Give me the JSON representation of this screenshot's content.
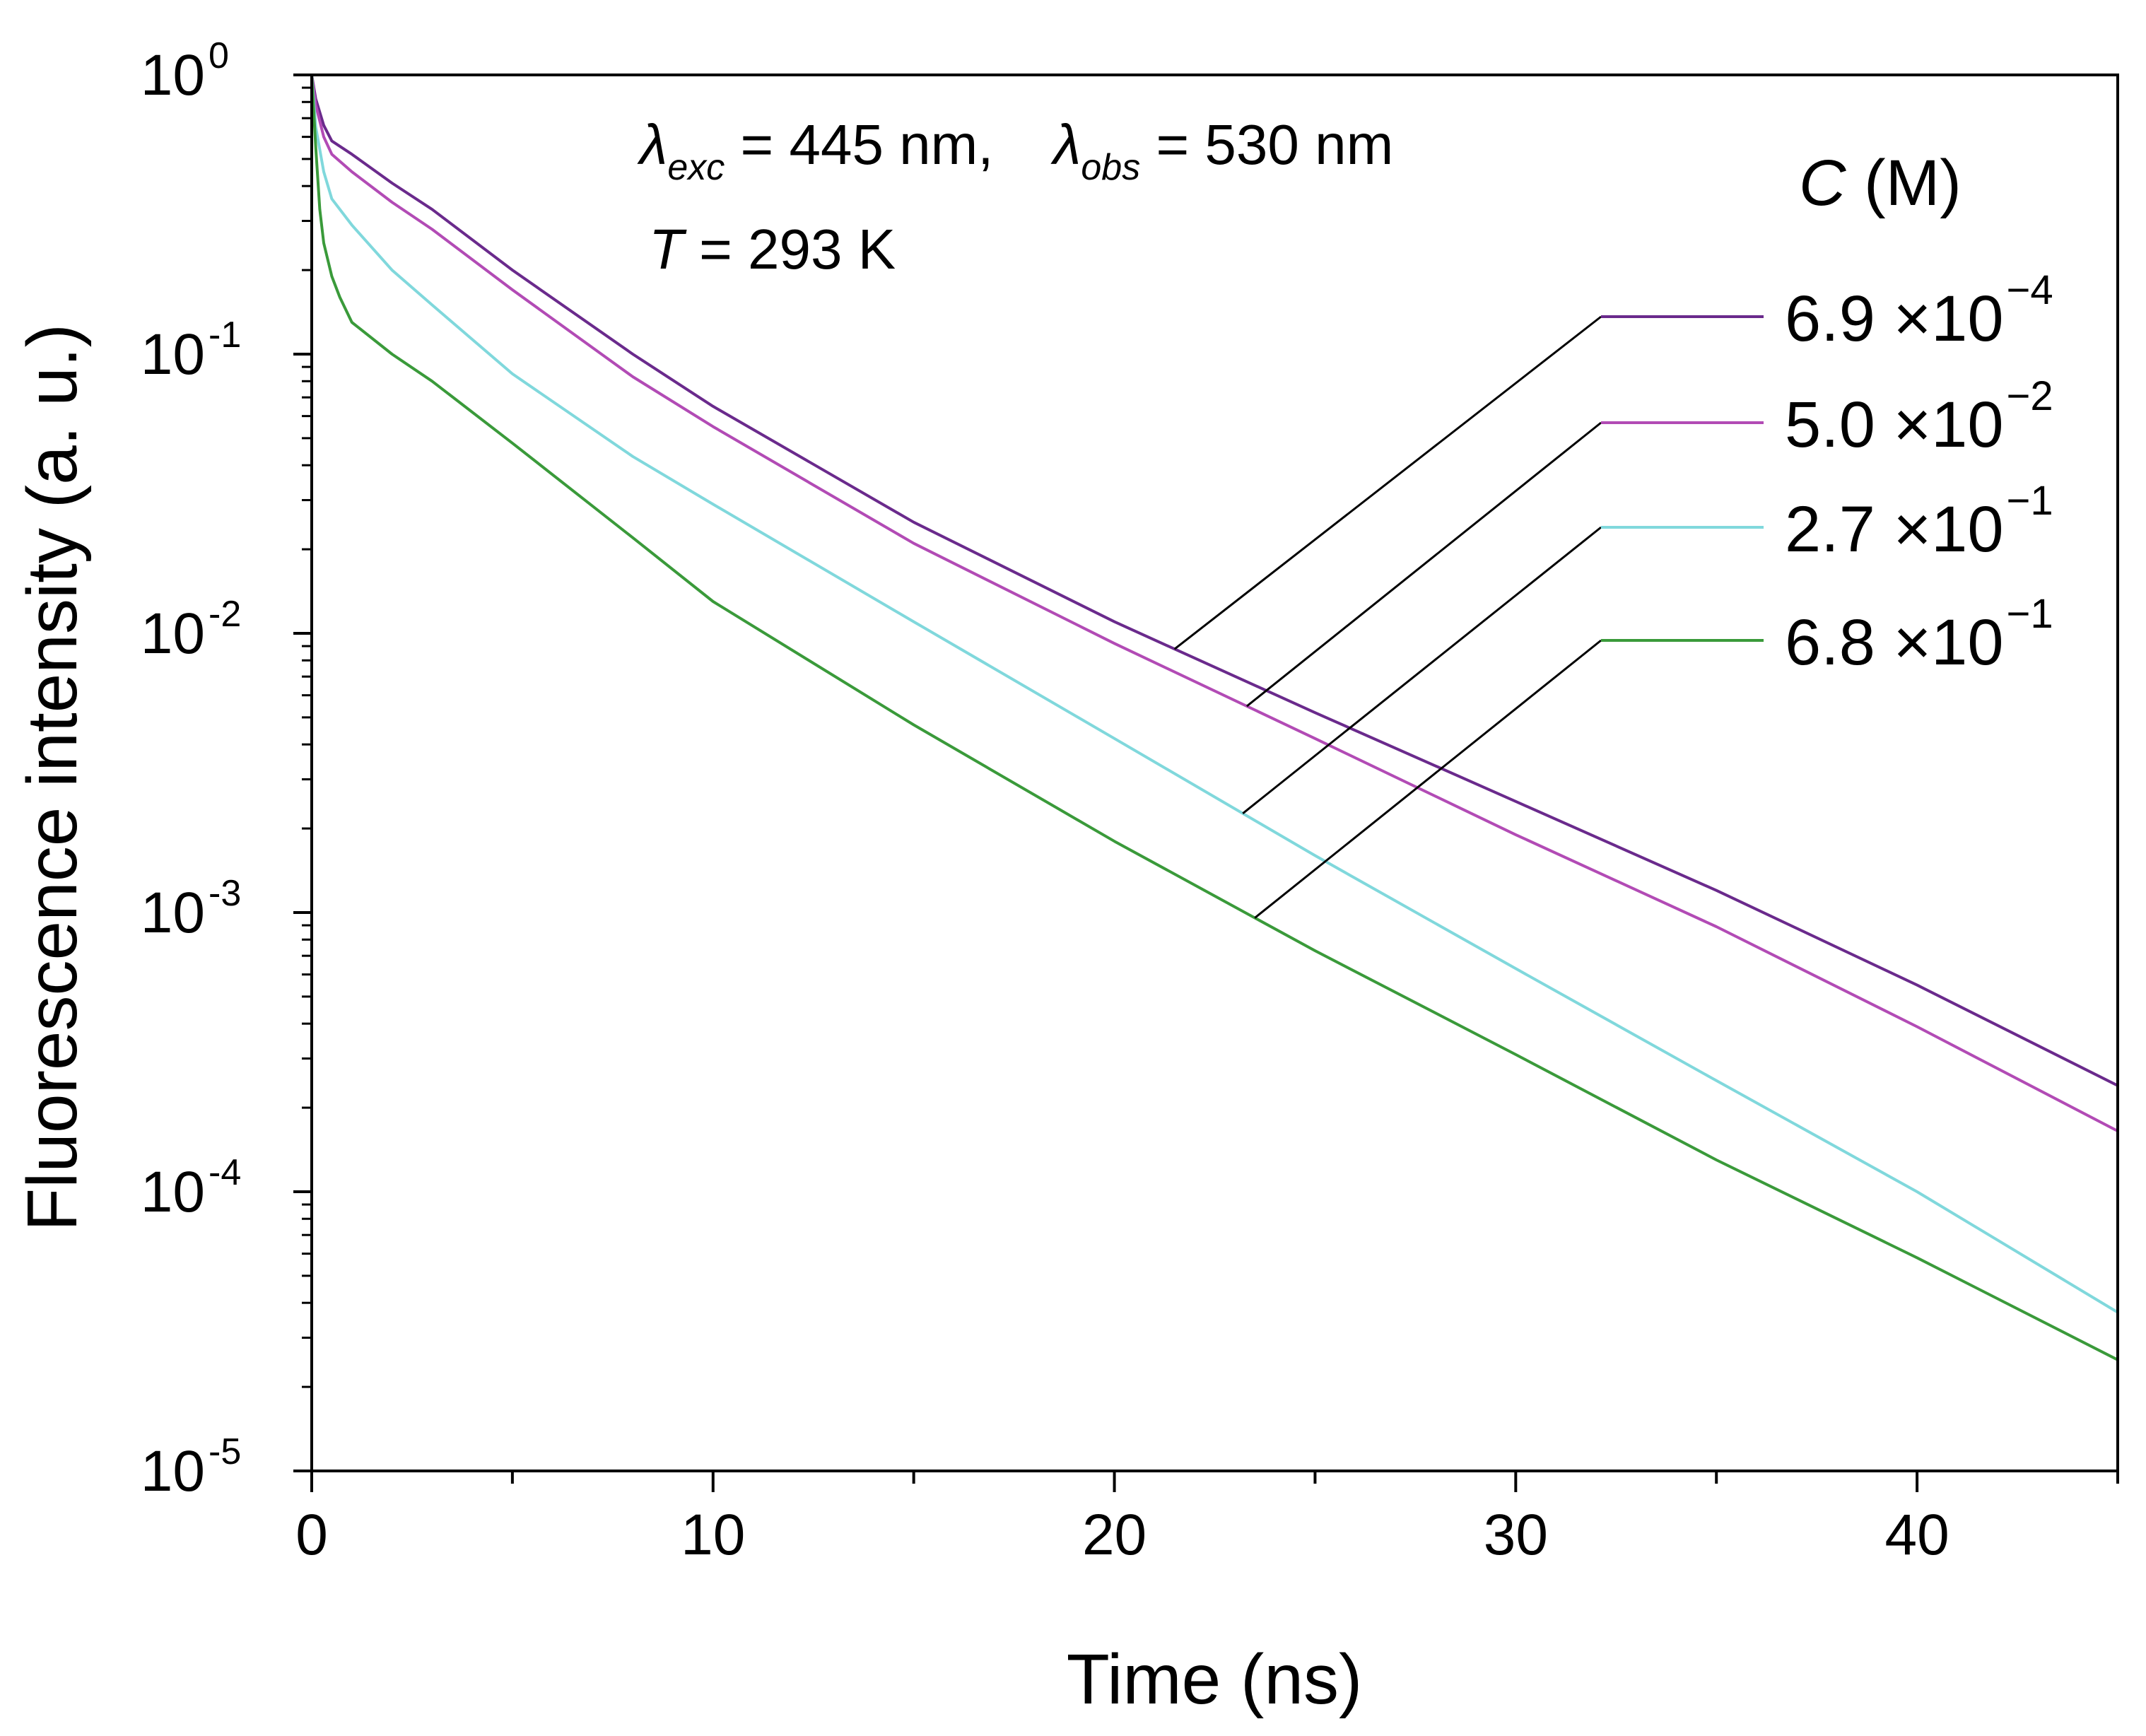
{
  "chart_data": {
    "type": "line",
    "title": "",
    "xlabel": "Time (ns)",
    "ylabel": "Fluorescence intensity (a. u.)",
    "xlim": [
      0,
      45
    ],
    "ylim": [
      1e-05,
      1
    ],
    "yscale": "log",
    "x_ticks": [
      0,
      10,
      20,
      30,
      40
    ],
    "x_tick_labels": [
      "0",
      "10",
      "20",
      "30",
      "40"
    ],
    "y_ticks": [
      {
        "value": 1,
        "base": "10",
        "exp": "0"
      },
      {
        "value": 0.1,
        "base": "10",
        "exp": "-1"
      },
      {
        "value": 0.01,
        "base": "10",
        "exp": "-2"
      },
      {
        "value": 0.001,
        "base": "10",
        "exp": "-3"
      },
      {
        "value": 0.0001,
        "base": "10",
        "exp": "-4"
      },
      {
        "value": 1e-05,
        "base": "10",
        "exp": "-5"
      }
    ],
    "annotations": {
      "lambda_symbol": "λ",
      "exc_sub": "exc",
      "exc_value": " = 445 nm,",
      "obs_sub": "obs",
      "obs_value": " = 530 nm",
      "temp_symbol": "T",
      "temp_value": " = 293 K"
    },
    "legend": {
      "title_symbol": "C",
      "title_unit": " (M)",
      "placement": "right"
    },
    "series": [
      {
        "name": "6.9 ×10⁻⁴",
        "label_mantissa": "6.9 ×10",
        "label_exp": "−4",
        "color": "#6a2a8c",
        "callout_x": 21.5,
        "x": [
          0,
          0.1,
          0.3,
          0.5,
          1,
          2,
          3,
          5,
          8,
          10,
          15,
          20,
          25,
          30,
          35,
          40,
          45
        ],
        "y": [
          1.0,
          0.82,
          0.66,
          0.58,
          0.52,
          0.41,
          0.33,
          0.2,
          0.1,
          0.065,
          0.025,
          0.011,
          0.0052,
          0.0025,
          0.0012,
          0.00055,
          0.00024
        ]
      },
      {
        "name": "5.0 ×10⁻²",
        "label_mantissa": "5.0 ×10",
        "label_exp": "−2",
        "color": "#b24bb5",
        "callout_x": 23.3,
        "x": [
          0,
          0.1,
          0.3,
          0.5,
          1,
          2,
          3,
          5,
          8,
          10,
          15,
          20,
          25,
          30,
          35,
          40,
          45
        ],
        "y": [
          1.0,
          0.78,
          0.6,
          0.52,
          0.45,
          0.35,
          0.28,
          0.17,
          0.083,
          0.055,
          0.021,
          0.0092,
          0.0042,
          0.0019,
          0.00089,
          0.00039,
          0.000165
        ]
      },
      {
        "name": "2.7 ×10⁻¹",
        "label_mantissa": "2.7 ×10",
        "label_exp": "−1",
        "color": "#80d8dc",
        "callout_x": 23.2,
        "x": [
          0,
          0.1,
          0.3,
          0.5,
          1,
          2,
          3,
          5,
          8,
          10,
          15,
          20,
          25,
          30,
          35,
          40,
          45
        ],
        "y": [
          1.0,
          0.65,
          0.45,
          0.36,
          0.29,
          0.2,
          0.15,
          0.085,
          0.043,
          0.029,
          0.011,
          0.0042,
          0.0016,
          0.00063,
          0.00025,
          0.0001,
          3.7e-05
        ]
      },
      {
        "name": "6.8 ×10⁻¹",
        "label_mantissa": "6.8 ×10",
        "label_exp": "−1",
        "color": "#3a9a3a",
        "callout_x": 23.5,
        "x": [
          0,
          0.1,
          0.2,
          0.3,
          0.5,
          0.7,
          1,
          2,
          3,
          5,
          8,
          10,
          15,
          20,
          25,
          30,
          35,
          40,
          45
        ],
        "y": [
          1.0,
          0.55,
          0.33,
          0.25,
          0.19,
          0.16,
          0.13,
          0.1,
          0.08,
          0.048,
          0.022,
          0.013,
          0.0047,
          0.0018,
          0.00073,
          0.00031,
          0.00013,
          5.8e-05,
          2.5e-05
        ]
      }
    ]
  }
}
